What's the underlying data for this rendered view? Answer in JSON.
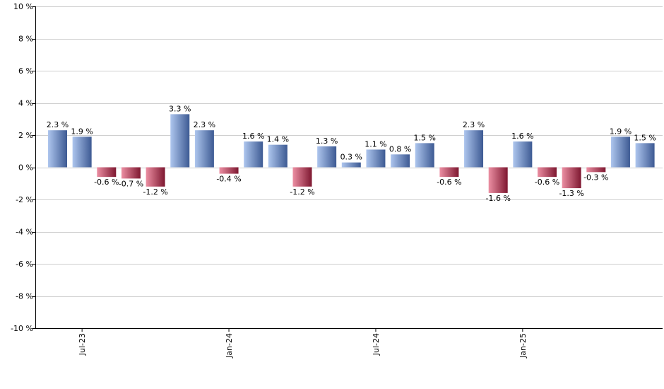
{
  "chart_data": {
    "type": "bar",
    "title": "",
    "xlabel": "",
    "ylabel": "",
    "ylim": [
      -10,
      10
    ],
    "ytick_step": 2,
    "value_suffix": " %",
    "grid": true,
    "legend": "none",
    "colors": {
      "positive_light": "#aec6ee",
      "positive_dark": "#3d5a93",
      "negative_light": "#ec8fa3",
      "negative_dark": "#7e1730",
      "grid": "#cfcfcf",
      "axis": "#000000"
    },
    "x_tick_labels": [
      {
        "label": "Jul-23",
        "index": 1
      },
      {
        "label": "Jan-24",
        "index": 7
      },
      {
        "label": "Jul-24",
        "index": 13
      },
      {
        "label": "Jan-25",
        "index": 19
      }
    ],
    "values": [
      2.3,
      1.9,
      -0.6,
      -0.7,
      -1.2,
      3.3,
      2.3,
      -0.4,
      1.6,
      1.4,
      -1.2,
      1.3,
      0.3,
      1.1,
      0.8,
      1.5,
      -0.6,
      2.3,
      -1.6,
      1.6,
      -0.6,
      -1.3,
      -0.3,
      1.9,
      1.5
    ]
  }
}
